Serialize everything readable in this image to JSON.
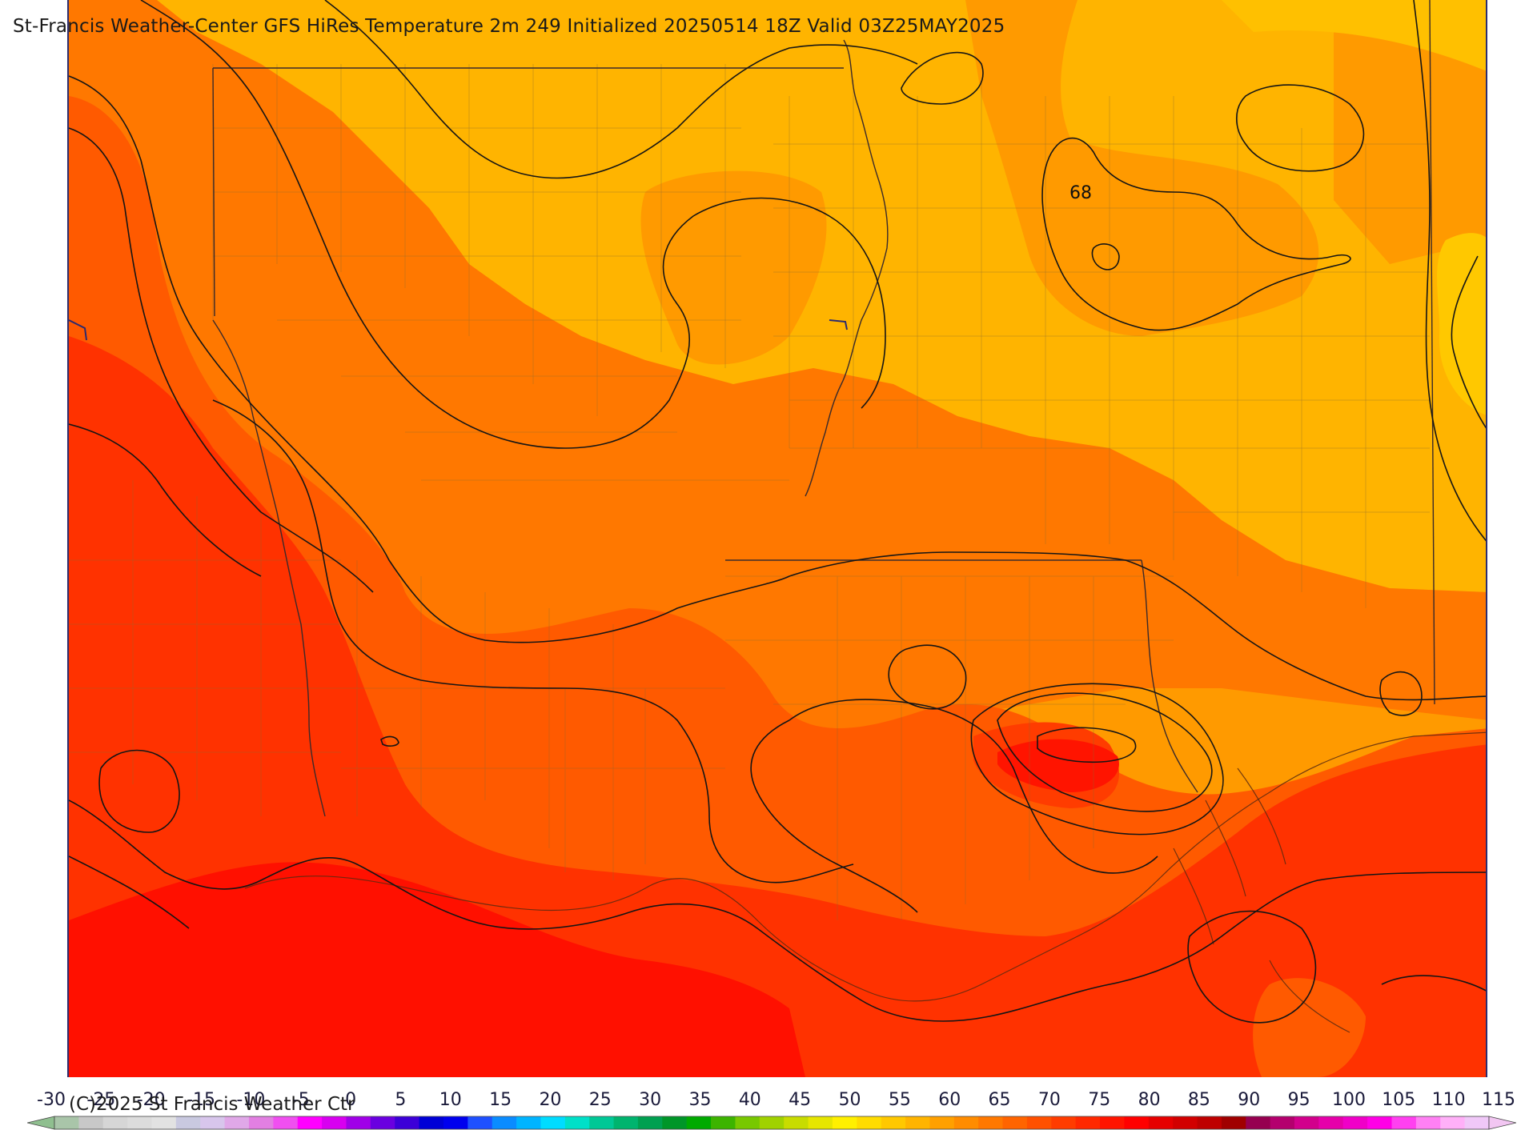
{
  "map": {
    "title": "St-Francis Weather-Center GFS HiRes Temperature 2m  249 Initialized 20250514 18Z Valid 03Z25MAY2025",
    "contour_label": "68",
    "copyright": "(C)2025 St Francis Weather Ctr"
  },
  "colorbar": {
    "labels": [
      "-30",
      "-25",
      "-20",
      "-15",
      "-10",
      "-5",
      "0",
      "5",
      "10",
      "15",
      "20",
      "25",
      "30",
      "35",
      "40",
      "45",
      "50",
      "55",
      "60",
      "65",
      "70",
      "75",
      "80",
      "85",
      "90",
      "95",
      "100",
      "105",
      "110",
      "115"
    ],
    "colors": [
      "#a9c5a9",
      "#c8c8c8",
      "#d6d6d6",
      "#dcdcdc",
      "#e2e2e2",
      "#c9c9e0",
      "#d8c6ec",
      "#e0a8e8",
      "#e27fe2",
      "#f04ff0",
      "#ff00ff",
      "#d800f0",
      "#a000e8",
      "#6a00e0",
      "#3c00d8",
      "#0000d6",
      "#0000ee",
      "#1e50ff",
      "#0a8cff",
      "#00b4ff",
      "#00dcff",
      "#00e0c8",
      "#00c896",
      "#00b46e",
      "#00a050",
      "#009628",
      "#00aa00",
      "#3cb400",
      "#78c800",
      "#a0d200",
      "#c8dc00",
      "#e6e600",
      "#fff000",
      "#ffdc00",
      "#ffc800",
      "#ffb400",
      "#ffa000",
      "#ff8c00",
      "#ff7800",
      "#ff6400",
      "#ff5000",
      "#ff3c00",
      "#ff2800",
      "#ff1400",
      "#ff0000",
      "#e60000",
      "#d20000",
      "#be0000",
      "#a00000",
      "#960050",
      "#b4006e",
      "#d2008c",
      "#e600aa",
      "#f000c8",
      "#ff00e6",
      "#ff40f0",
      "#ff80f4",
      "#ffb0f8",
      "#f0c8f8"
    ],
    "left_arrow_color": "#8fbf8f",
    "right_arrow_color": "#f2c6f2"
  },
  "legend_colors": {
    "t60": "#ffc800",
    "t65": "#ffb400",
    "t70": "#ff9a00",
    "t75": "#ff7800",
    "t80": "#ff5a00",
    "t85": "#ff3200",
    "t90": "#ff1000"
  }
}
